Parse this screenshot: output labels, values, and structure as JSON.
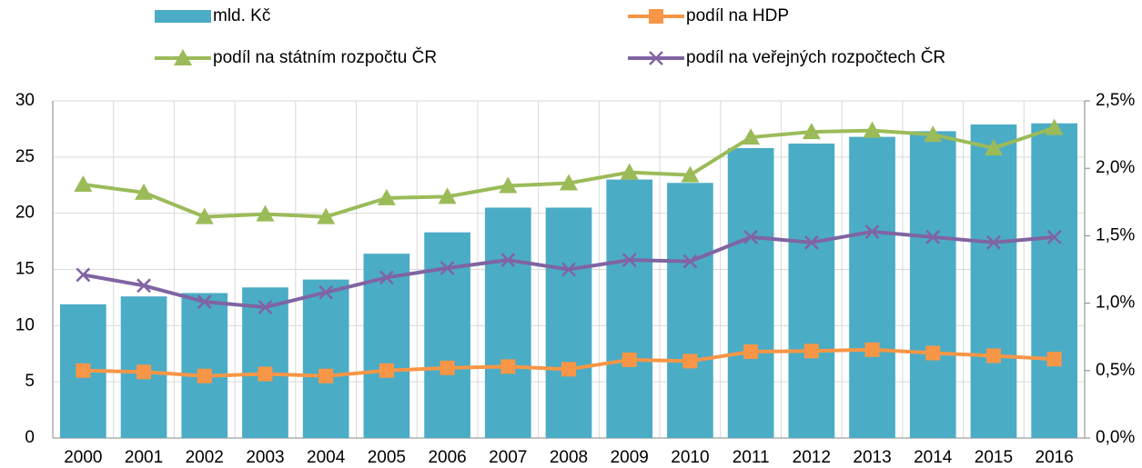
{
  "chart_data": {
    "type": "combo",
    "categories": [
      "2000",
      "2001",
      "2002",
      "2003",
      "2004",
      "2005",
      "2006",
      "2007",
      "2008",
      "2009",
      "2010",
      "2011",
      "2012",
      "2013",
      "2014",
      "2015",
      "2016"
    ],
    "series": [
      {
        "name": "mld. Kč",
        "type": "bar",
        "color": "#4bacc6",
        "values": [
          11.9,
          12.6,
          12.9,
          13.4,
          14.1,
          16.4,
          18.3,
          20.5,
          20.5,
          23.0,
          22.7,
          25.8,
          26.2,
          26.8,
          27.3,
          27.9,
          28.0
        ]
      },
      {
        "name": "podíl na HDP",
        "type": "line",
        "marker": "square",
        "axis": "y2",
        "color": "#f79646",
        "values": [
          0.5,
          0.49,
          0.46,
          0.475,
          0.46,
          0.5,
          0.52,
          0.53,
          0.51,
          0.58,
          0.57,
          0.64,
          0.645,
          0.655,
          0.63,
          0.61,
          0.585
        ]
      },
      {
        "name": "podíl na státním rozpočtu ČR",
        "type": "line",
        "marker": "triangle",
        "axis": "y2",
        "color": "#9bbb59",
        "values": [
          1.88,
          1.82,
          1.64,
          1.66,
          1.64,
          1.78,
          1.79,
          1.87,
          1.89,
          1.97,
          1.95,
          2.23,
          2.27,
          2.28,
          2.25,
          2.15,
          2.3
        ]
      },
      {
        "name": "podíl na veřejných rozpočtech ČR",
        "type": "line",
        "marker": "x",
        "axis": "y2",
        "color": "#8064a2",
        "values": [
          1.21,
          1.13,
          1.01,
          0.97,
          1.08,
          1.19,
          1.26,
          1.32,
          1.25,
          1.32,
          1.31,
          1.49,
          1.45,
          1.53,
          1.49,
          1.45,
          1.49
        ]
      }
    ],
    "ylim": [
      0,
      30
    ],
    "yticks": [
      0,
      5,
      10,
      15,
      20,
      25,
      30
    ],
    "y2lim": [
      0,
      2.5
    ],
    "y2ticks": [
      {
        "value": 0,
        "label": "0,0%"
      },
      {
        "value": 0.5,
        "label": "0,5%"
      },
      {
        "value": 1,
        "label": "1,0%"
      },
      {
        "value": 1.5,
        "label": "1,5%"
      },
      {
        "value": 2,
        "label": "2,0%"
      },
      {
        "value": 2.5,
        "label": "2,5%"
      }
    ],
    "grid": true,
    "legend": "top"
  }
}
